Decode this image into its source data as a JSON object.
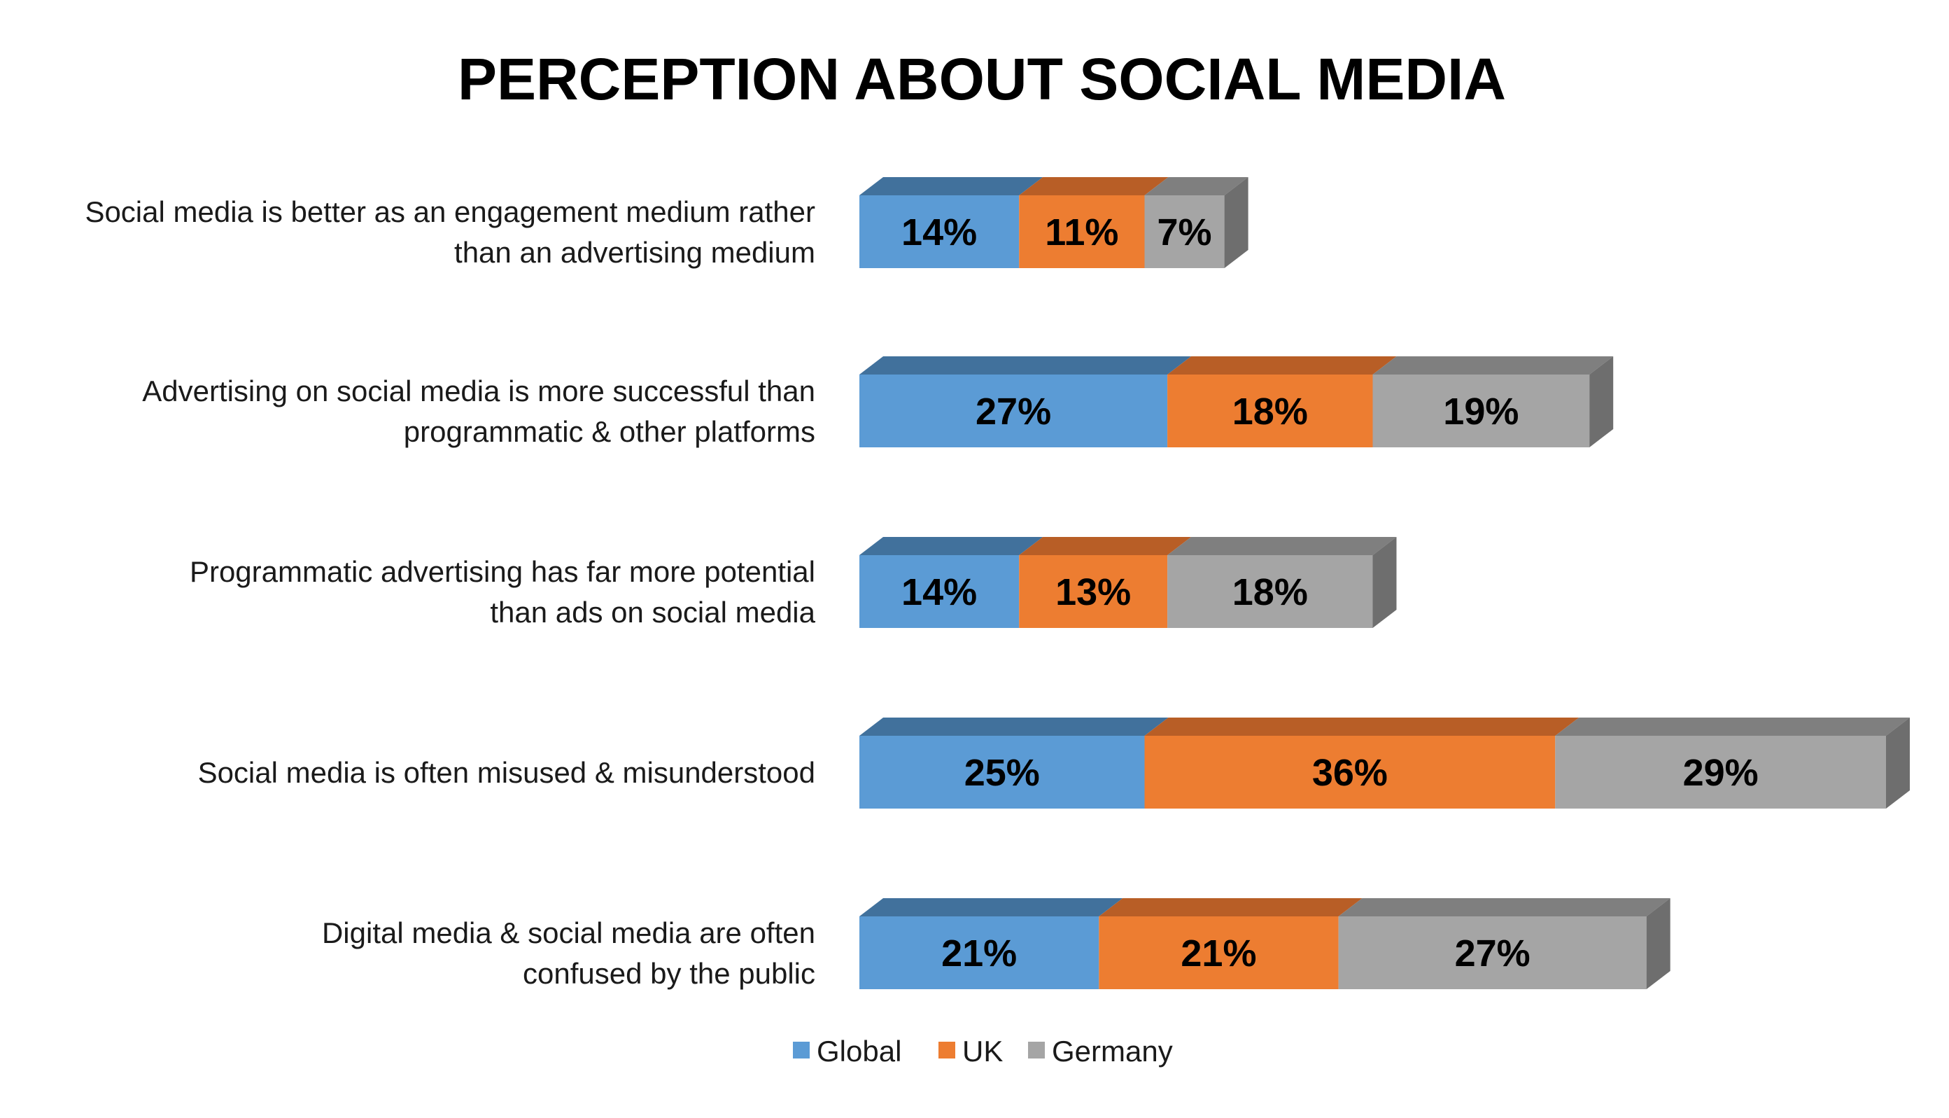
{
  "chart_data": {
    "type": "bar",
    "orientation": "horizontal",
    "stacked": true,
    "three_d": true,
    "title": "PERCEPTION ABOUT SOCIAL MEDIA",
    "xlabel": "",
    "ylabel": "",
    "value_format": "{v}%",
    "categories": [
      [
        "Social media is better as an engagement medium rather",
        "than an advertising medium"
      ],
      [
        "Advertising on social media is more successful than",
        "programmatic & other platforms"
      ],
      [
        "Programmatic advertising has far more potential",
        "than ads on social media"
      ],
      [
        "Social media is often misused & misunderstood"
      ],
      [
        "Digital media & social media are often",
        "confused by the public"
      ]
    ],
    "series": [
      {
        "name": "Global",
        "color": "#5B9BD5",
        "top_color": "#41719C",
        "values": [
          14,
          27,
          14,
          25,
          21
        ]
      },
      {
        "name": "UK",
        "color": "#ED7D31",
        "top_color": "#B85E26",
        "values": [
          11,
          18,
          13,
          36,
          21
        ]
      },
      {
        "name": "Germany",
        "color": "#A5A5A5",
        "top_color": "#7F7F7F",
        "values": [
          7,
          19,
          18,
          29,
          27
        ]
      }
    ],
    "side_color": "#6E6E6E",
    "xlim": [
      0,
      90
    ],
    "grid": false,
    "axes_visible": false,
    "legend_position": "bottom"
  }
}
